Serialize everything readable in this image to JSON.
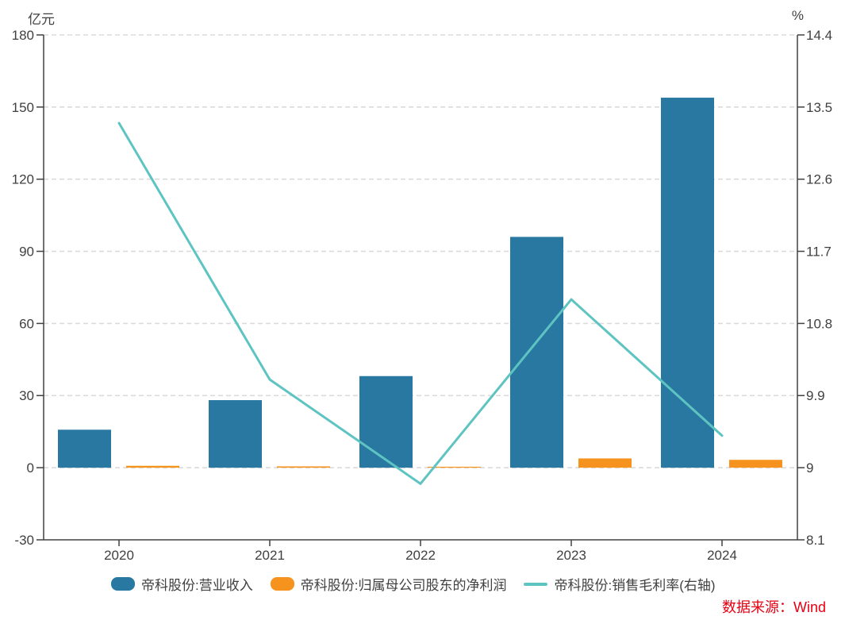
{
  "source_note": "数据来源：Wind",
  "colors": {
    "revenue_bar": "#2878A2",
    "profit_bar": "#F6921E",
    "margin_line": "#5EC4C1",
    "source_text": "#E60012",
    "grid": "#DBDBDB",
    "axis": "#404040",
    "text": "#404040"
  },
  "legend": [
    {
      "label": "帝科股份:营业收入",
      "type": "bar",
      "color_key": "revenue_bar"
    },
    {
      "label": "帝科股份:归属母公司股东的净利润",
      "type": "bar",
      "color_key": "profit_bar"
    },
    {
      "label": "帝科股份:销售毛利率(右轴)",
      "type": "line",
      "color_key": "margin_line"
    }
  ],
  "chart_data": {
    "type": "bar+line",
    "categories": [
      "2020",
      "2021",
      "2022",
      "2023",
      "2024"
    ],
    "series": [
      {
        "name": "帝科股份:营业收入",
        "type": "bar",
        "axis": "left",
        "values": [
          15.8,
          28.1,
          38.1,
          96.0,
          153.9
        ]
      },
      {
        "name": "帝科股份:归属母公司股东的净利润",
        "type": "bar",
        "axis": "left",
        "values": [
          0.79,
          0.55,
          0.04,
          3.86,
          3.27
        ]
      },
      {
        "name": "帝科股份:销售毛利率(右轴)",
        "type": "line",
        "axis": "right",
        "values": [
          13.3,
          10.1,
          8.8,
          11.1,
          9.4
        ]
      }
    ],
    "left_axis": {
      "unit": "亿元",
      "min": -30,
      "max": 180,
      "ticks": [
        180,
        150,
        120,
        90,
        60,
        30,
        0,
        -30
      ]
    },
    "right_axis": {
      "unit": "%",
      "min": 8.1,
      "max": 14.4,
      "ticks": [
        14.4,
        13.5,
        12.6,
        11.7,
        10.8,
        9.9,
        9,
        8.1
      ]
    },
    "grid": "dashed horizontal lines at left-axis ticks",
    "legend_position": "bottom"
  }
}
